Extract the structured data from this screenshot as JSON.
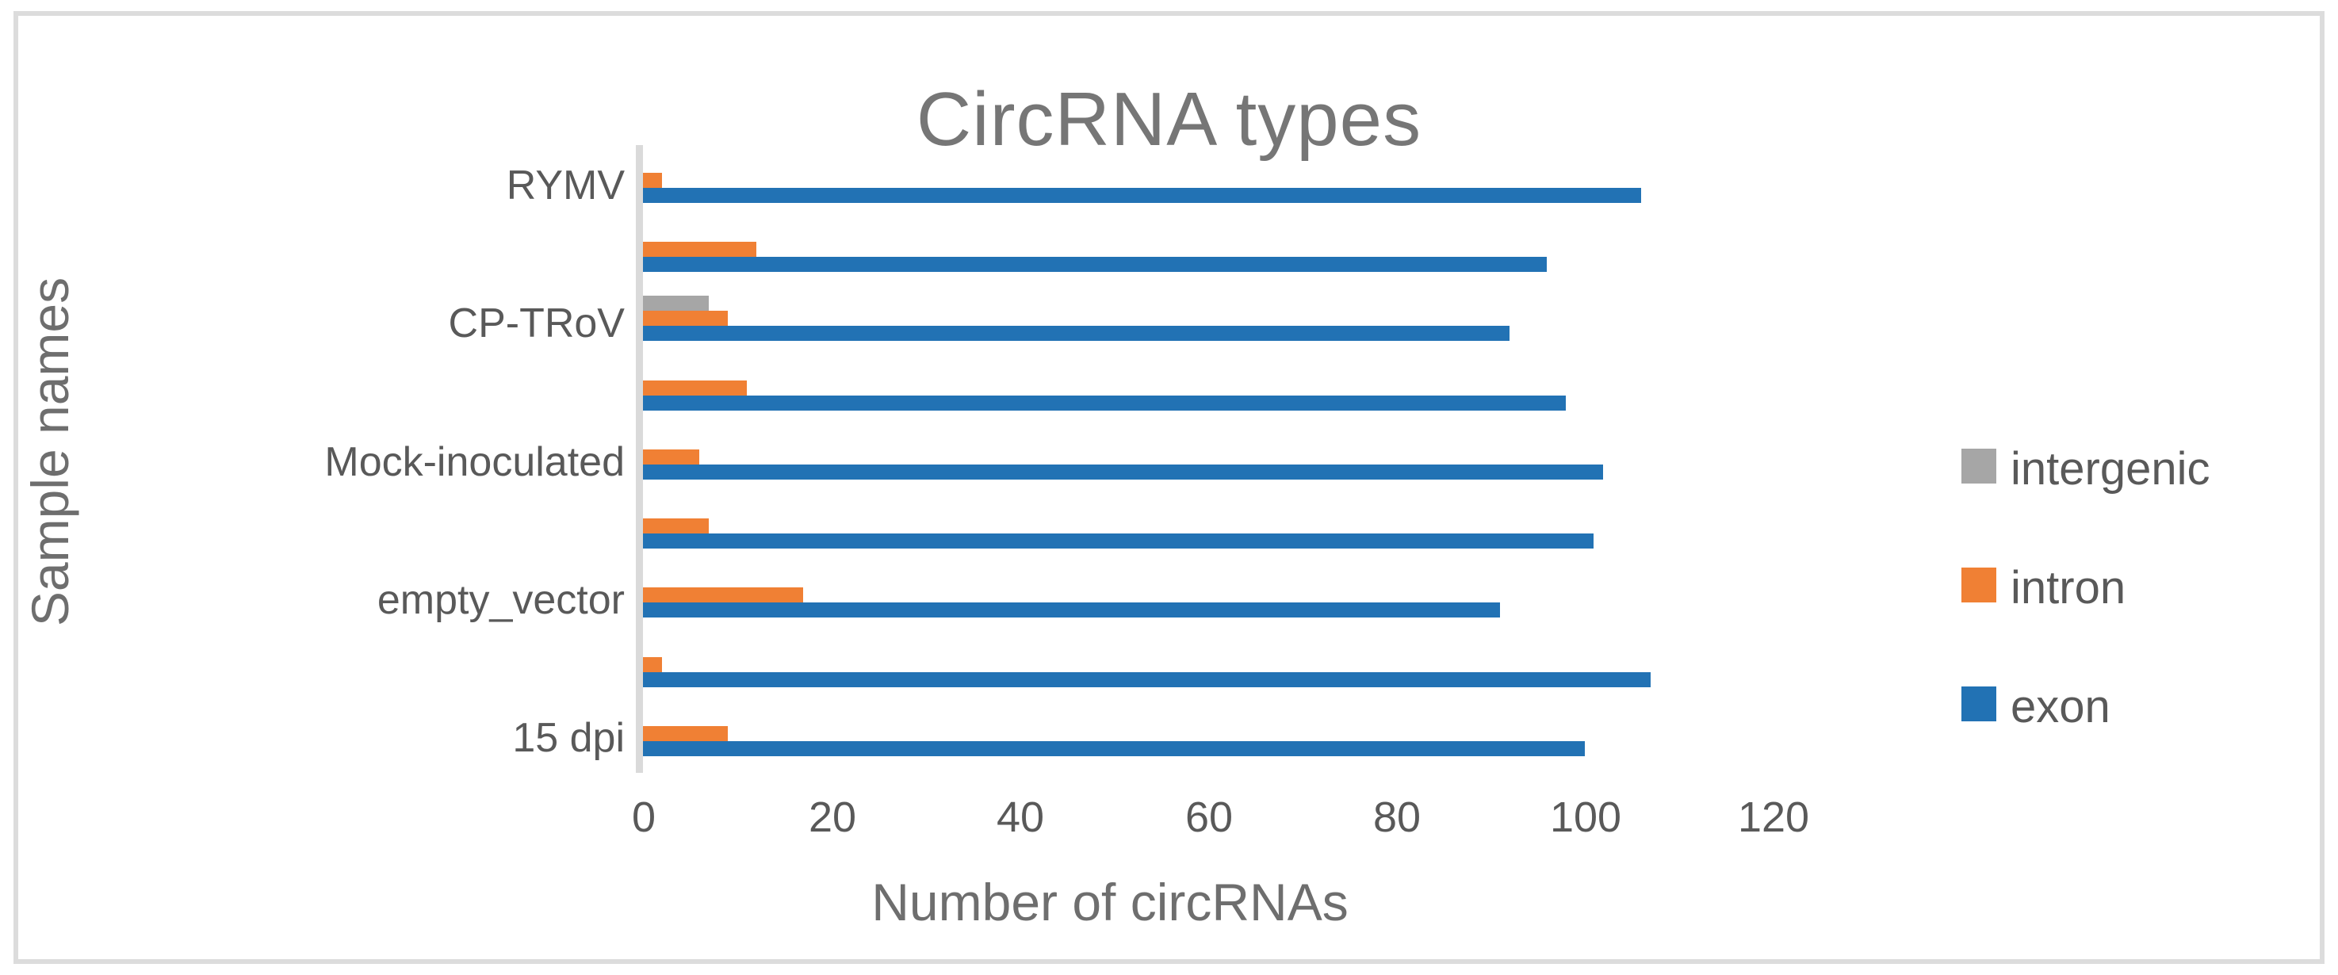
{
  "figure": {
    "title": "CircRNA types",
    "x_axis_title": "Number of circRNAs",
    "y_axis_title": "Sample names"
  },
  "legend": {
    "position": "right",
    "entries": [
      {
        "label": "intergenic",
        "color": "#a6a6a6"
      },
      {
        "label": "intron",
        "color": "#f08034"
      },
      {
        "label": "exon",
        "color": "#2272b4"
      }
    ]
  },
  "chart_data": {
    "type": "bar",
    "orientation": "horizontal",
    "title": "CircRNA types",
    "xlabel": "Number of circRNAs",
    "ylabel": "Sample names",
    "xlim": [
      0,
      131
    ],
    "x_ticks": [
      0,
      20,
      40,
      60,
      80,
      100,
      120
    ],
    "grid": false,
    "legend_position": "right",
    "categories": [
      "RYMV",
      "",
      "CP-TRoV",
      "",
      "Mock-inoculated",
      "",
      "empty_vector",
      "",
      "15 dpi"
    ],
    "visible_category_labels": [
      "RYMV",
      "CP-TRoV",
      "Mock-inoculated",
      "empty_vector",
      "15 dpi"
    ],
    "series": [
      {
        "name": "intergenic",
        "color": "#a6a6a6",
        "values": [
          0,
          0,
          7,
          0,
          0,
          0,
          0,
          0,
          0
        ]
      },
      {
        "name": "intron",
        "color": "#f08034",
        "values": [
          2,
          12,
          9,
          11,
          6,
          7,
          17,
          2,
          9
        ]
      },
      {
        "name": "exon",
        "color": "#2272b4",
        "values": [
          106,
          96,
          92,
          98,
          102,
          101,
          91,
          107,
          100
        ]
      }
    ]
  },
  "colors": {
    "axis_line": "#dadada",
    "title_text": "#767676",
    "axis_title_text": "#6e6e6e",
    "tick_text": "#595959",
    "frame_border": "#dcdcdc"
  }
}
